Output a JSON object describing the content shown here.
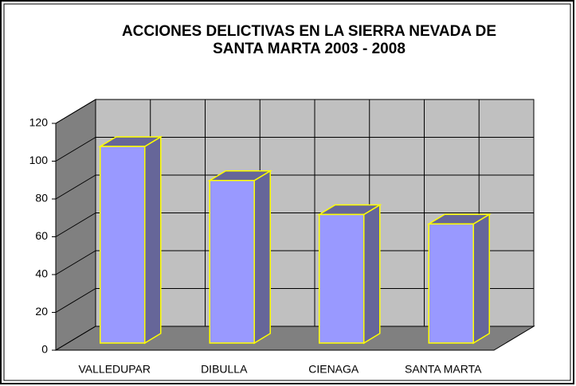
{
  "chart_data": {
    "type": "bar3d",
    "title": [
      "ACCIONES DELICTIVAS EN LA SIERRA NEVADA DE",
      "SANTA MARTA 2003 - 2008"
    ],
    "categories": [
      "VALLEDUPAR",
      "DIBULLA",
      "CIENAGA",
      "SANTA MARTA"
    ],
    "values": [
      104,
      86,
      68,
      63
    ],
    "color": "#9999ff",
    "side_color": "#666699",
    "edge_color": "#ffff00",
    "wall_color": "#c0c0c0",
    "ylim": [
      0,
      120
    ],
    "yticks": [
      0,
      20,
      40,
      60,
      80,
      100,
      120
    ],
    "grid": true
  }
}
